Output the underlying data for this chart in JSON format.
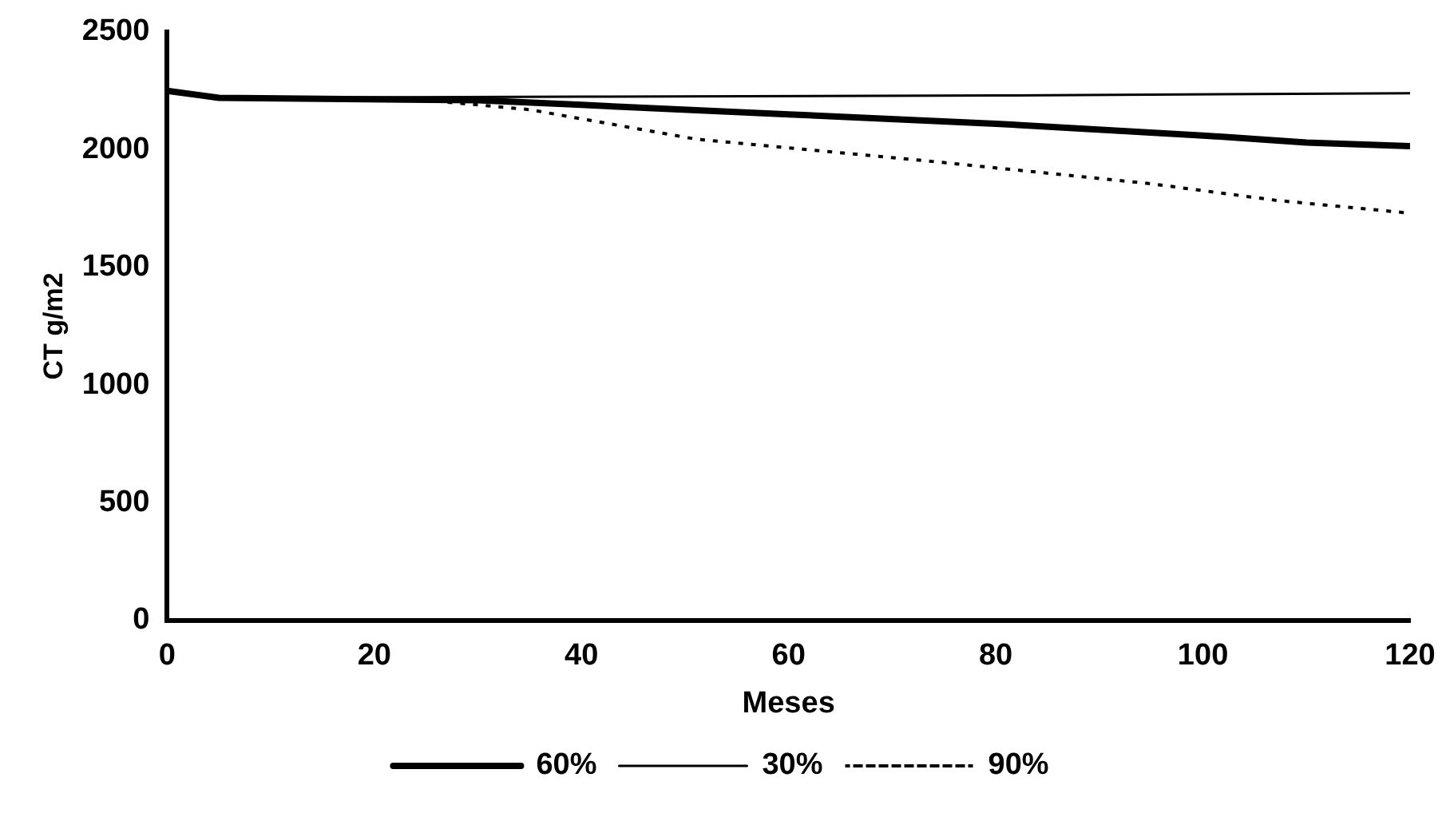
{
  "chart_data": {
    "type": "line",
    "xlabel": "Meses",
    "ylabel": "CT g/m2",
    "xlim": [
      0,
      120
    ],
    "xticks": [
      0,
      20,
      40,
      60,
      80,
      100,
      120
    ],
    "ylim": [
      0,
      2500
    ],
    "yticks": [
      0,
      500,
      1000,
      1500,
      2000,
      2500
    ],
    "grid": false,
    "legend": "bottom",
    "marker": "none",
    "series": [
      {
        "name": "60%",
        "color": "#000000",
        "line_style": "solid",
        "x": [
          0,
          5,
          30,
          40,
          60,
          80,
          100,
          110,
          120
        ],
        "values": [
          2250,
          2220,
          2210,
          2190,
          2150,
          2110,
          2060,
          2030,
          2015
        ]
      },
      {
        "name": "30%",
        "color": "#000000",
        "line_style": "solid",
        "x": [
          0,
          5,
          40,
          80,
          120
        ],
        "values": [
          2250,
          2220,
          2225,
          2230,
          2240
        ]
      },
      {
        "name": "90%",
        "color": "#000000",
        "line_style": "dotted",
        "x": [
          0,
          5,
          25,
          35,
          51,
          75,
          95,
          107,
          120
        ],
        "values": [
          2250,
          2220,
          2210,
          2170,
          2045,
          1945,
          1855,
          1785,
          1730
        ]
      }
    ]
  }
}
